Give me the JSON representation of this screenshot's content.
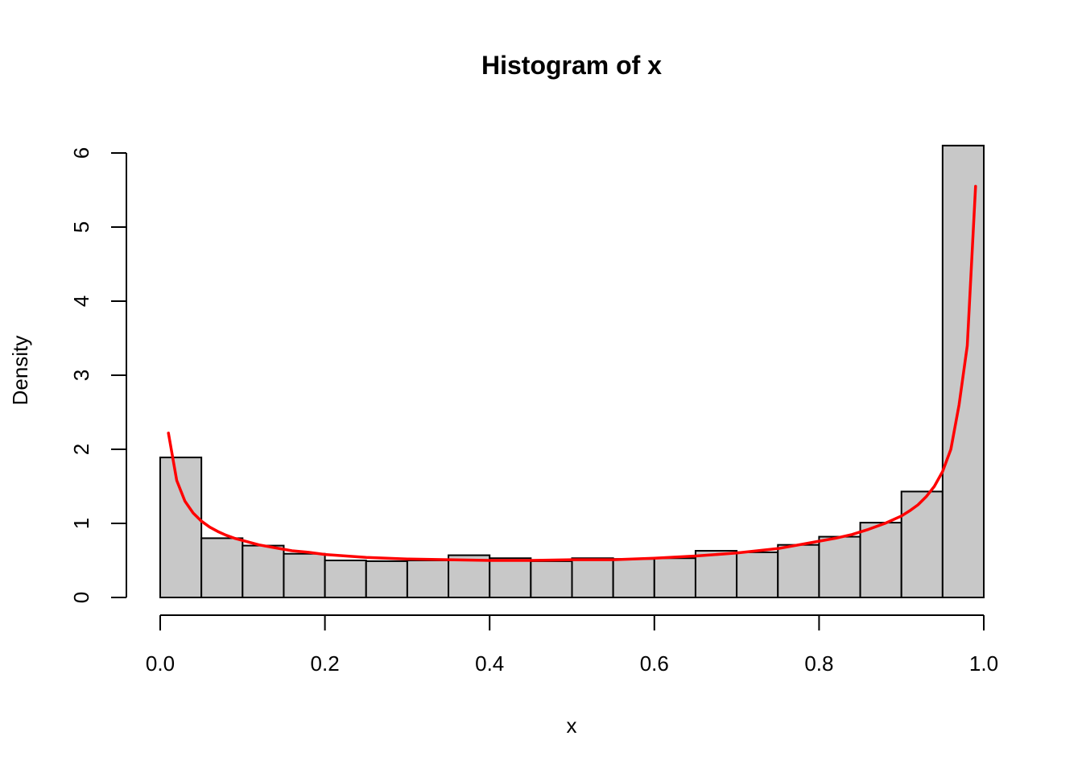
{
  "chart_data": {
    "type": "bar",
    "subtype": "histogram",
    "title": "Histogram of x",
    "xlabel": "x",
    "ylabel": "Density",
    "xlim": [
      0,
      1
    ],
    "ylim": [
      0,
      6
    ],
    "x_ticks": [
      "0.0",
      "0.2",
      "0.4",
      "0.6",
      "0.8",
      "1.0"
    ],
    "y_ticks": [
      "0",
      "1",
      "2",
      "3",
      "4",
      "5",
      "6"
    ],
    "bar_fill": "#c8c8c8",
    "bar_stroke": "#000000",
    "bins": [
      {
        "start": 0.0,
        "end": 0.05,
        "density": 1.89
      },
      {
        "start": 0.05,
        "end": 0.1,
        "density": 0.8
      },
      {
        "start": 0.1,
        "end": 0.15,
        "density": 0.7
      },
      {
        "start": 0.15,
        "end": 0.2,
        "density": 0.59
      },
      {
        "start": 0.2,
        "end": 0.25,
        "density": 0.5
      },
      {
        "start": 0.25,
        "end": 0.3,
        "density": 0.49
      },
      {
        "start": 0.3,
        "end": 0.35,
        "density": 0.5
      },
      {
        "start": 0.35,
        "end": 0.4,
        "density": 0.57
      },
      {
        "start": 0.4,
        "end": 0.45,
        "density": 0.53
      },
      {
        "start": 0.45,
        "end": 0.5,
        "density": 0.49
      },
      {
        "start": 0.5,
        "end": 0.55,
        "density": 0.53
      },
      {
        "start": 0.55,
        "end": 0.6,
        "density": 0.52
      },
      {
        "start": 0.6,
        "end": 0.65,
        "density": 0.53
      },
      {
        "start": 0.65,
        "end": 0.7,
        "density": 0.63
      },
      {
        "start": 0.7,
        "end": 0.75,
        "density": 0.61
      },
      {
        "start": 0.75,
        "end": 0.8,
        "density": 0.71
      },
      {
        "start": 0.8,
        "end": 0.85,
        "density": 0.82
      },
      {
        "start": 0.85,
        "end": 0.9,
        "density": 1.01
      },
      {
        "start": 0.9,
        "end": 0.95,
        "density": 1.43
      },
      {
        "start": 0.95,
        "end": 1.0,
        "density": 6.1
      }
    ],
    "series": [
      {
        "type": "line",
        "color": "#ff0000",
        "x": [
          0.01,
          0.02,
          0.03,
          0.04,
          0.05,
          0.06,
          0.07,
          0.08,
          0.09,
          0.1,
          0.12,
          0.14,
          0.16,
          0.18,
          0.2,
          0.25,
          0.3,
          0.35,
          0.4,
          0.45,
          0.5,
          0.55,
          0.6,
          0.65,
          0.7,
          0.75,
          0.8,
          0.82,
          0.84,
          0.86,
          0.88,
          0.9,
          0.91,
          0.92,
          0.93,
          0.94,
          0.95,
          0.96,
          0.97,
          0.98,
          0.99
        ],
        "y": [
          2.22,
          1.58,
          1.3,
          1.14,
          1.03,
          0.95,
          0.89,
          0.84,
          0.8,
          0.77,
          0.71,
          0.67,
          0.63,
          0.61,
          0.58,
          0.54,
          0.52,
          0.51,
          0.5,
          0.5,
          0.51,
          0.51,
          0.53,
          0.56,
          0.6,
          0.66,
          0.76,
          0.8,
          0.85,
          0.92,
          1.0,
          1.1,
          1.17,
          1.25,
          1.36,
          1.5,
          1.7,
          2.0,
          2.6,
          3.4,
          5.55
        ]
      }
    ]
  }
}
